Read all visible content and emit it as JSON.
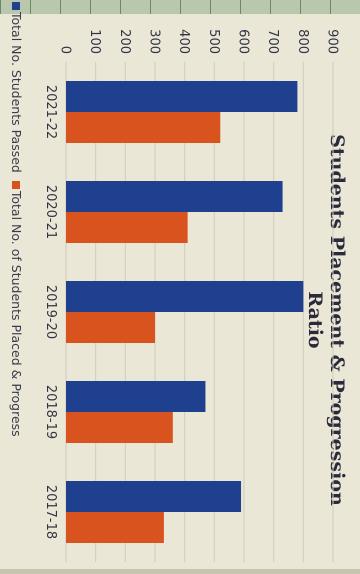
{
  "chart_data": {
    "type": "bar",
    "title": "Students Placement & Progression Ratio",
    "categories": [
      "2021-22",
      "2020-21",
      "2019-20",
      "2018-19",
      "2017-18"
    ],
    "series": [
      {
        "name": "Total No. Students  Passed",
        "color": "#1f3f8f",
        "values": [
          780,
          730,
          800,
          470,
          590
        ]
      },
      {
        "name": "Total No. of Students Placed & Progress",
        "color": "#d9531e",
        "values": [
          520,
          410,
          300,
          360,
          330
        ]
      }
    ],
    "ylim": [
      0,
      900
    ],
    "yticks": [
      "0",
      "100",
      "200",
      "300",
      "400",
      "500",
      "600",
      "700",
      "800",
      "900"
    ],
    "grid": true,
    "legend": "bottom"
  }
}
